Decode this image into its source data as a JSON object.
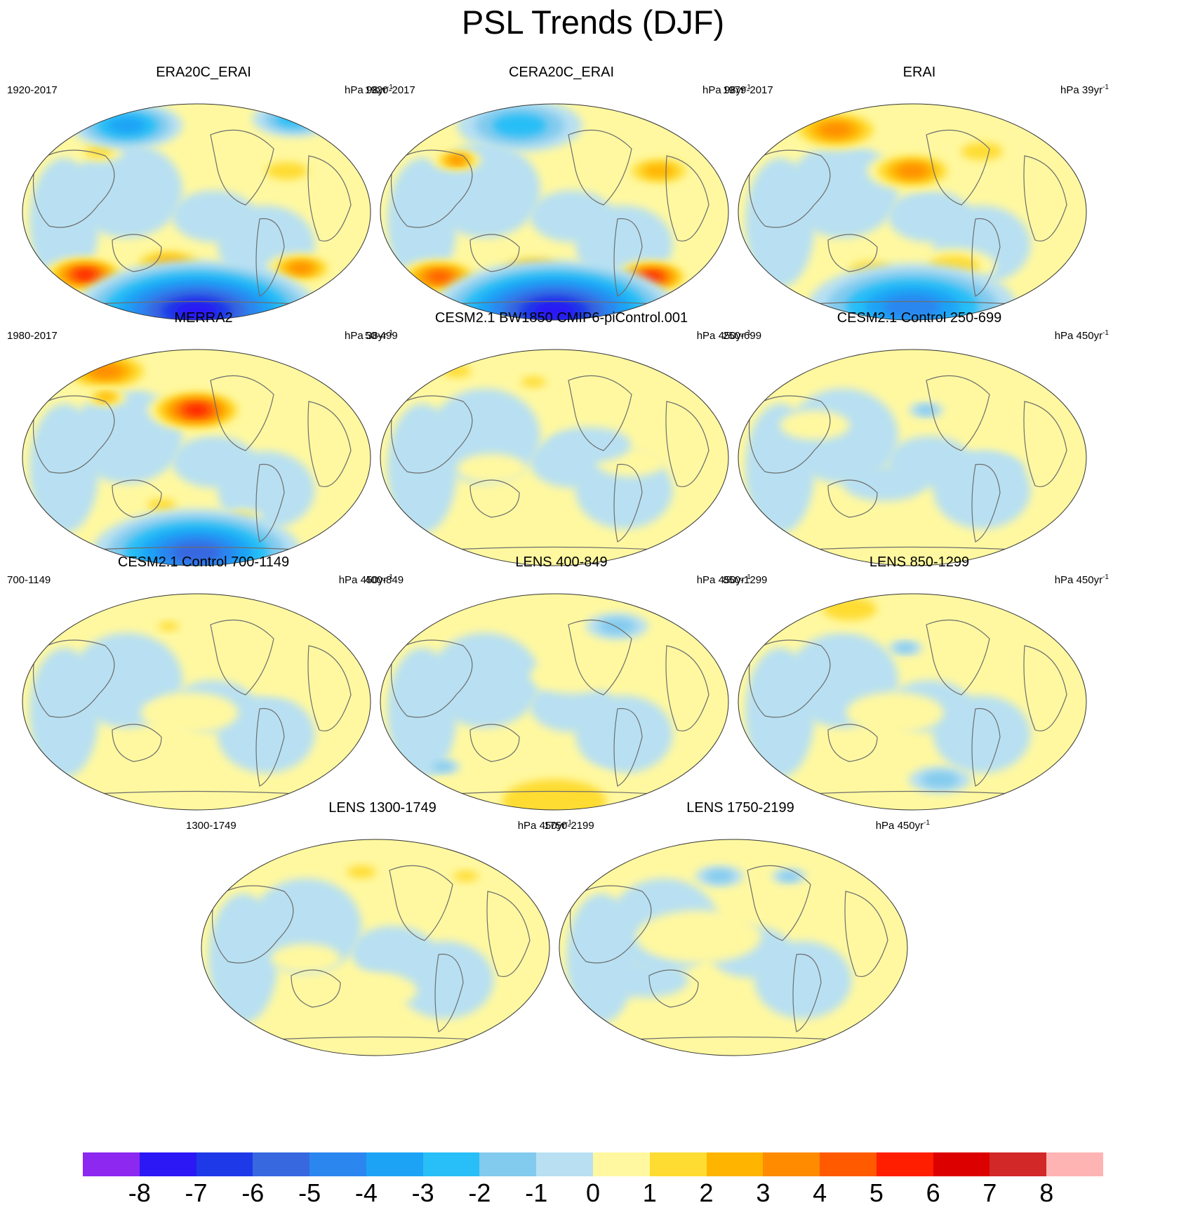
{
  "title": "PSL Trends (DJF)",
  "chart_data": {
    "type": "heatmap",
    "projection": "global map (ellipse), Pacific-centred",
    "variable": "PSL trend",
    "season": "DJF",
    "panels": [
      {
        "title": "ERA20C_ERAI",
        "period": "1920-2017",
        "units_prefix": "hPa ",
        "units_value": "98yr",
        "units_exp": "-1",
        "features": [
          {
            "lon": 0.18,
            "lat": 0.79,
            "value": 6,
            "size": 0.12
          },
          {
            "lon": 0.42,
            "lat": 0.74,
            "value": 3,
            "size": 0.12
          },
          {
            "lon": 0.8,
            "lat": 0.76,
            "value": 4,
            "size": 0.1
          },
          {
            "lon": 0.76,
            "lat": 0.31,
            "value": 2,
            "size": 0.1
          },
          {
            "lon": 0.22,
            "lat": 0.22,
            "value": 2,
            "size": 0.07
          },
          {
            "lon": 0.3,
            "lat": 0.1,
            "value": -4,
            "size": 0.16
          },
          {
            "lon": 0.78,
            "lat": 0.07,
            "value": -3,
            "size": 0.12
          },
          {
            "lon": 0.5,
            "lat": 0.96,
            "value": -8,
            "size": 0.35
          }
        ]
      },
      {
        "title": "CERA20C_ERAI",
        "period": "1920-2017",
        "units_prefix": "hPa ",
        "units_value": "98yr",
        "units_exp": "-1",
        "features": [
          {
            "lon": 0.17,
            "lat": 0.8,
            "value": 5,
            "size": 0.12
          },
          {
            "lon": 0.78,
            "lat": 0.8,
            "value": 6,
            "size": 0.11
          },
          {
            "lon": 0.44,
            "lat": 0.77,
            "value": 3,
            "size": 0.12
          },
          {
            "lon": 0.8,
            "lat": 0.31,
            "value": 3,
            "size": 0.11
          },
          {
            "lon": 0.22,
            "lat": 0.26,
            "value": 4,
            "size": 0.07
          },
          {
            "lon": 0.4,
            "lat": 0.1,
            "value": -3,
            "size": 0.18
          },
          {
            "lon": 0.5,
            "lat": 0.96,
            "value": -8,
            "size": 0.35
          }
        ]
      },
      {
        "title": "ERAI",
        "period": "1979-2017",
        "units_prefix": "hPa ",
        "units_value": "39yr",
        "units_exp": "-1",
        "features": [
          {
            "lon": 0.28,
            "lat": 0.12,
            "value": 4,
            "size": 0.14
          },
          {
            "lon": 0.5,
            "lat": 0.31,
            "value": 4,
            "size": 0.13
          },
          {
            "lon": 0.62,
            "lat": 0.75,
            "value": 2,
            "size": 0.12
          },
          {
            "lon": 0.38,
            "lat": 0.77,
            "value": 2,
            "size": 0.1
          },
          {
            "lon": 0.7,
            "lat": 0.22,
            "value": 2,
            "size": 0.1
          },
          {
            "lon": 0.5,
            "lat": 0.94,
            "value": -5,
            "size": 0.3
          }
        ]
      },
      {
        "title": "MERRA2",
        "period": "1980-2017",
        "units_prefix": "hPa ",
        "units_value": "38yr",
        "units_exp": "-1",
        "features": [
          {
            "lon": 0.5,
            "lat": 0.28,
            "value": 6,
            "size": 0.14
          },
          {
            "lon": 0.24,
            "lat": 0.1,
            "value": 4,
            "size": 0.14
          },
          {
            "lon": 0.24,
            "lat": 0.22,
            "value": 3,
            "size": 0.06
          },
          {
            "lon": 0.4,
            "lat": 0.72,
            "value": 2,
            "size": 0.07
          },
          {
            "lon": 0.63,
            "lat": 0.78,
            "value": 2,
            "size": 0.06
          },
          {
            "lon": 0.5,
            "lat": 0.94,
            "value": -6,
            "size": 0.3
          }
        ]
      },
      {
        "title": "CESM2.1 BW1850 CMIP6-piControl.001",
        "period": "50-499",
        "units_prefix": "hPa ",
        "units_value": "450yr",
        "units_exp": "-1",
        "features": [
          {
            "lon": 0.22,
            "lat": 0.1,
            "value": 2,
            "size": 0.07
          },
          {
            "lon": 0.44,
            "lat": 0.15,
            "value": 2,
            "size": 0.06
          },
          {
            "lon": 0.72,
            "lat": 0.52,
            "value": 1,
            "size": 0.1
          },
          {
            "lon": 0.32,
            "lat": 0.55,
            "value": 1,
            "size": 0.1
          },
          {
            "lon": 0.6,
            "lat": 0.44,
            "value": -1,
            "size": 0.12
          }
        ]
      },
      {
        "title": "CESM2.1 Control 250-699",
        "period": "250-699",
        "units_prefix": "",
        "units_value": "hPa 450yr",
        "units_exp": "-1",
        "features": [
          {
            "lon": 0.54,
            "lat": 0.28,
            "value": -2,
            "size": 0.05
          },
          {
            "lon": 0.42,
            "lat": 0.62,
            "value": -1,
            "size": 0.12
          },
          {
            "lon": 0.72,
            "lat": 0.55,
            "value": -1,
            "size": 0.1
          },
          {
            "lon": 0.22,
            "lat": 0.35,
            "value": 1,
            "size": 0.1
          }
        ]
      },
      {
        "title": "CESM2.1 Control 700-1149",
        "period": "700-1149",
        "units_prefix": "hPa ",
        "units_value": "450yr",
        "units_exp": "-1",
        "features": [
          {
            "lon": 0.42,
            "lat": 0.15,
            "value": 2,
            "size": 0.05
          },
          {
            "lon": 0.48,
            "lat": 0.55,
            "value": 1,
            "size": 0.14
          },
          {
            "lon": 0.74,
            "lat": 0.4,
            "value": 1,
            "size": 0.09
          },
          {
            "lon": 0.3,
            "lat": 0.42,
            "value": -1,
            "size": 0.1
          }
        ]
      },
      {
        "title": "LENS 400-849",
        "period": "400-849",
        "units_prefix": "hPa ",
        "units_value": "450yr",
        "units_exp": "-1",
        "features": [
          {
            "lon": 0.68,
            "lat": 0.15,
            "value": -2,
            "size": 0.09
          },
          {
            "lon": 0.18,
            "lat": 0.8,
            "value": -2,
            "size": 0.05
          },
          {
            "lon": 0.5,
            "lat": 0.96,
            "value": 2,
            "size": 0.25
          },
          {
            "lon": 0.55,
            "lat": 0.38,
            "value": 1,
            "size": 0.12
          }
        ]
      },
      {
        "title": "LENS 850-1299",
        "period": "850-1299",
        "units_prefix": "hPa ",
        "units_value": "450yr",
        "units_exp": "-1",
        "features": [
          {
            "lon": 0.32,
            "lat": 0.07,
            "value": 2,
            "size": 0.13
          },
          {
            "lon": 0.88,
            "lat": 0.1,
            "value": 2,
            "size": 0.05
          },
          {
            "lon": 0.48,
            "lat": 0.25,
            "value": -2,
            "size": 0.05
          },
          {
            "lon": 0.58,
            "lat": 0.86,
            "value": -2,
            "size": 0.09
          },
          {
            "lon": 0.45,
            "lat": 0.55,
            "value": 1,
            "size": 0.14
          }
        ]
      },
      {
        "title": "LENS 1300-1749",
        "period": "1300-1749",
        "units_prefix": "hPa ",
        "units_value": "450yr",
        "units_exp": "-1",
        "features": [
          {
            "lon": 0.46,
            "lat": 0.15,
            "value": 2,
            "size": 0.07
          },
          {
            "lon": 0.76,
            "lat": 0.17,
            "value": 2,
            "size": 0.06
          },
          {
            "lon": 0.5,
            "lat": 0.7,
            "value": 1,
            "size": 0.12
          },
          {
            "lon": 0.3,
            "lat": 0.55,
            "value": 1,
            "size": 0.1
          }
        ]
      },
      {
        "title": "LENS 1750-2199",
        "period": "1750-2199",
        "units_prefix": "hPa ",
        "units_value": "450yr",
        "units_exp": "-1",
        "features": [
          {
            "lon": 0.46,
            "lat": 0.17,
            "value": -2,
            "size": 0.07
          },
          {
            "lon": 0.66,
            "lat": 0.17,
            "value": -2,
            "size": 0.05
          },
          {
            "lon": 0.4,
            "lat": 0.45,
            "value": 1,
            "size": 0.18
          },
          {
            "lon": 0.25,
            "lat": 0.65,
            "value": -1,
            "size": 0.12
          }
        ]
      }
    ],
    "colorbar": {
      "levels": [
        -8,
        -7,
        -6,
        -5,
        -4,
        -3,
        -2,
        -1,
        0,
        1,
        2,
        3,
        4,
        5,
        6,
        7,
        8
      ],
      "tick_labels": [
        "-8",
        "-7",
        "-6",
        "-5",
        "-4",
        "-3",
        "-2",
        "-1",
        "0",
        "1",
        "2",
        "3",
        "4",
        "5",
        "6",
        "7",
        "8"
      ],
      "colors": [
        "#8c28f0",
        "#2b18f5",
        "#1e3ae8",
        "#3768e0",
        "#2c86f0",
        "#1da3f5",
        "#28bef7",
        "#82caee",
        "#b8e0f2",
        "#fff8a0",
        "#ffdc32",
        "#ffb400",
        "#ff8c00",
        "#ff5a00",
        "#ff1e00",
        "#dc0000",
        "#d22828",
        "#ffb4b4"
      ]
    }
  }
}
